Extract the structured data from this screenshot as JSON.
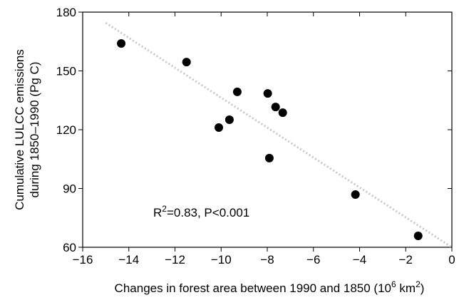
{
  "chart_data": {
    "type": "scatter",
    "x_label": [
      "Changes in forest area between 1990 and 1850 (10",
      "6",
      " km",
      "2",
      ")"
    ],
    "y_label": [
      "Cumulative LULCC emissions",
      "during 1850–1990 (Pg C)"
    ],
    "annotation": [
      "R",
      "2",
      "=0.83, P<0.001"
    ],
    "x": [
      -14.33,
      -11.5,
      -9.3,
      -10.1,
      -9.64,
      -7.98,
      -7.64,
      -7.33,
      -7.91,
      -4.18,
      -1.46
    ],
    "values": [
      164,
      154.5,
      139.3,
      121.1,
      125.1,
      138.5,
      131.6,
      128.7,
      105.5,
      86.9,
      65.8
    ],
    "color": "#000000",
    "trendline": {
      "x": [
        -15,
        0
      ],
      "y": [
        174.5,
        60
      ],
      "color": "#c8c8c8"
    },
    "xlim": [
      -16,
      0
    ],
    "xticks": [
      {
        "value": -16,
        "label": "−16"
      },
      {
        "value": -14,
        "label": "−14"
      },
      {
        "value": -12,
        "label": "−12"
      },
      {
        "value": -10,
        "label": "−10"
      },
      {
        "value": -8,
        "label": "−8"
      },
      {
        "value": -6,
        "label": "−6"
      },
      {
        "value": -4,
        "label": "−4"
      },
      {
        "value": -2,
        "label": "−2"
      },
      0
    ],
    "ylim": [
      60,
      180
    ],
    "yticks": [
      60,
      90,
      120,
      150,
      180
    ]
  }
}
